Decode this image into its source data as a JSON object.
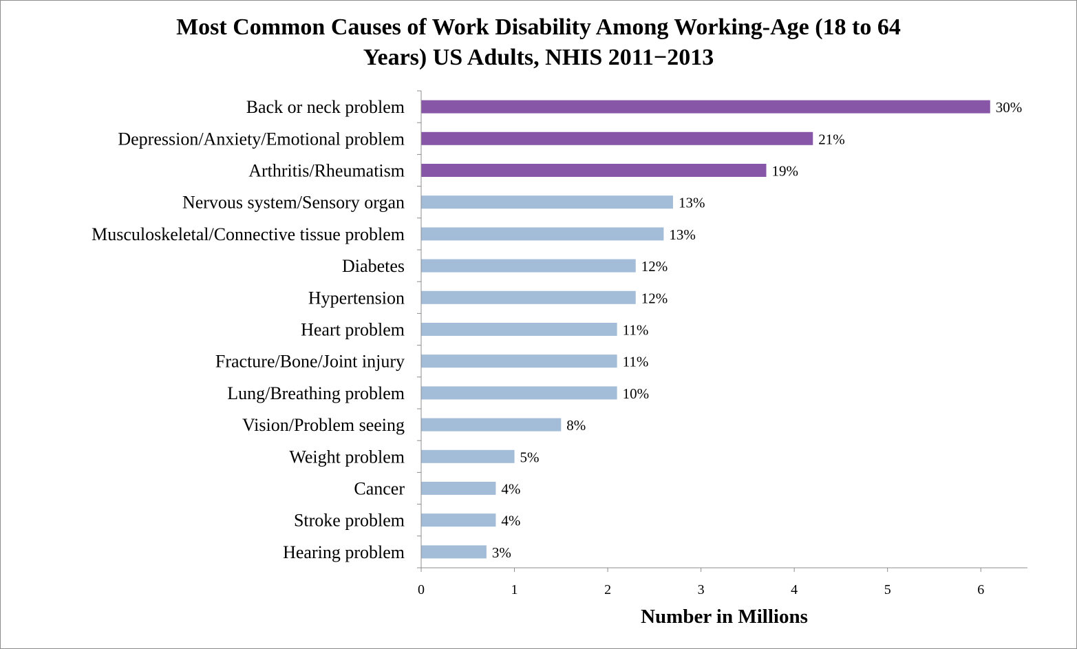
{
  "chart_data": {
    "type": "bar",
    "orientation": "horizontal",
    "title": [
      "Most Common Causes of Work Disability Among Working-Age (18 to 64",
      "Years) US Adults, NHIS 2011−2013"
    ],
    "xlabel": "Number in Millions",
    "ylabel": "",
    "xlim": [
      0,
      6.5
    ],
    "xticks": [
      0,
      1,
      2,
      3,
      4,
      5,
      6
    ],
    "grid": false,
    "legend": "none",
    "colors": {
      "highlight": "#8856a7",
      "normal": "#a3bdd9"
    },
    "categories": [
      "Back or neck problem",
      "Depression/Anxiety/Emotional problem",
      "Arthritis/Rheumatism",
      "Nervous system/Sensory organ",
      "Musculoskeletal/Connective tissue problem",
      "Diabetes",
      "Hypertension",
      "Heart problem",
      "Fracture/Bone/Joint injury",
      "Lung/Breathing problem",
      "Vision/Problem seeing",
      "Weight problem",
      "Cancer",
      "Stroke problem",
      "Hearing problem"
    ],
    "values": [
      6.1,
      4.2,
      3.7,
      2.7,
      2.6,
      2.3,
      2.3,
      2.1,
      2.1,
      2.1,
      1.5,
      1.0,
      0.8,
      0.8,
      0.7
    ],
    "data_labels": [
      "30%",
      "21%",
      "19%",
      "13%",
      "13%",
      "12%",
      "12%",
      "11%",
      "11%",
      "10%",
      "8%",
      "5%",
      "4%",
      "4%",
      "3%"
    ],
    "highlighted": [
      true,
      true,
      true,
      false,
      false,
      false,
      false,
      false,
      false,
      false,
      false,
      false,
      false,
      false,
      false
    ]
  }
}
